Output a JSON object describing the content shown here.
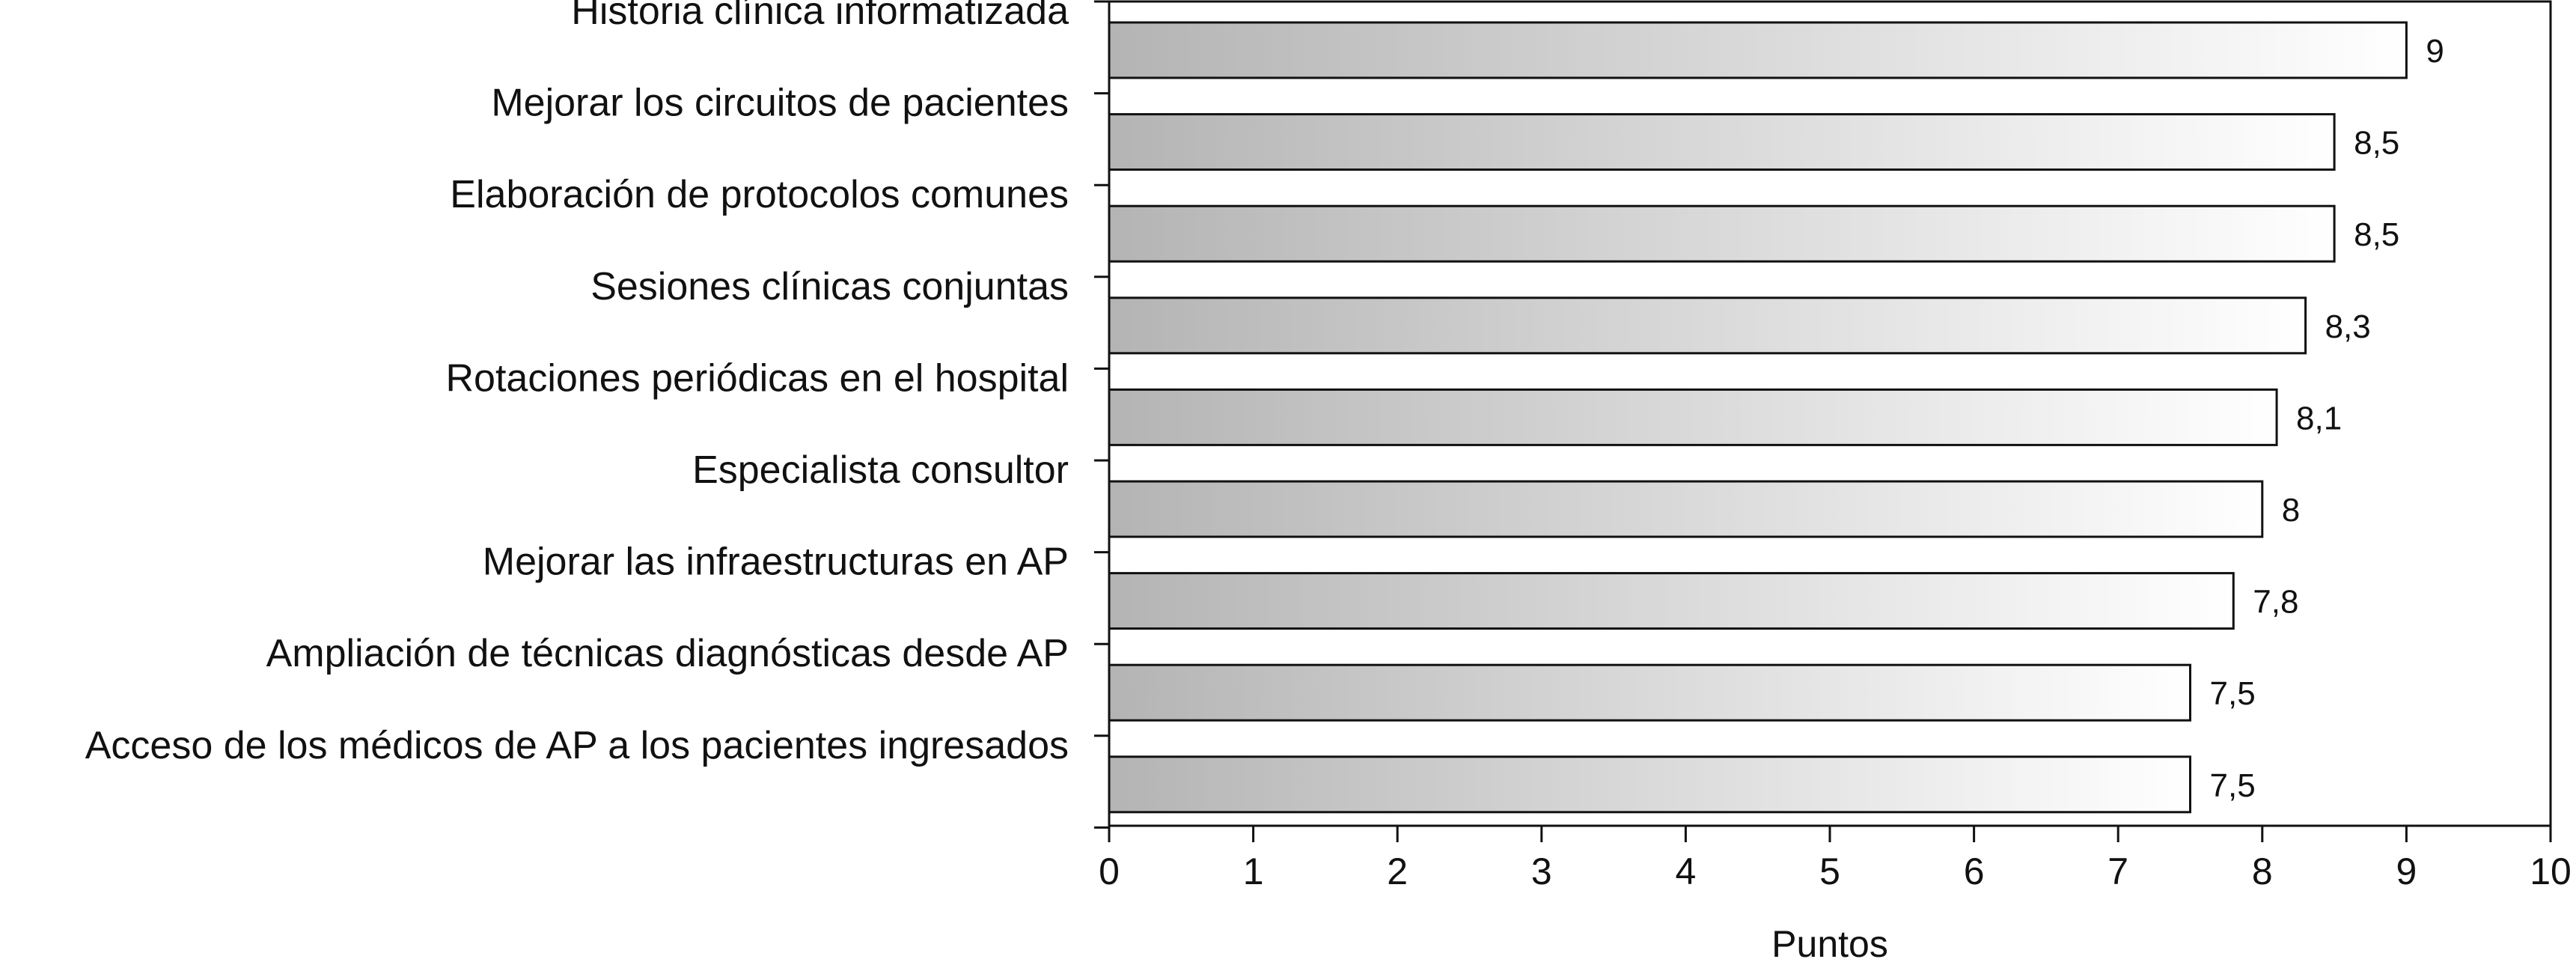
{
  "chart_data": {
    "type": "bar",
    "orientation": "horizontal",
    "categories": [
      "Historia clínica informatizada",
      "Mejorar los circuitos de pacientes",
      "Elaboración de protocolos comunes",
      "Sesiones clínicas conjuntas",
      "Rotaciones periódicas en el hospital",
      "Especialista consultor",
      "Mejorar las infraestructuras en AP",
      "Ampliación de técnicas diagnósticas desde AP",
      "Acceso de los médicos de AP a los pacientes ingresados"
    ],
    "values": [
      9,
      8.5,
      8.5,
      8.3,
      8.1,
      8,
      7.8,
      7.5,
      7.5
    ],
    "value_labels": [
      "9",
      "8,5",
      "8,5",
      "8,3",
      "8,1",
      "8",
      "7,8",
      "7,5",
      "7,5"
    ],
    "xticks": [
      "0",
      "1",
      "2",
      "3",
      "4",
      "5",
      "6",
      "7",
      "8",
      "9",
      "10"
    ],
    "xlim": [
      0,
      10
    ],
    "xlabel": "Puntos",
    "ylabel": "",
    "title": "",
    "grid": false,
    "bar_fill": "gradient from #b4b4b4 to #ffffff",
    "bar_stroke": "#111111"
  }
}
